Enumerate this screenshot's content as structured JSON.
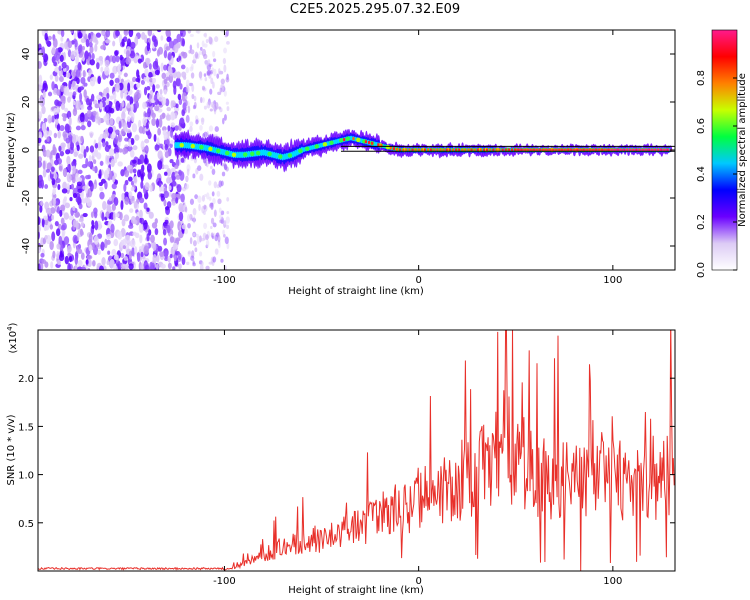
{
  "title": "C2E5.2025.295.07.32.E09",
  "colors": {
    "snr_line": "#e8302a",
    "background": "#ffffff",
    "colormap": [
      "#ffffff",
      "#dccbf5",
      "#6a00ff",
      "#0000ff",
      "#00c8ff",
      "#00ff40",
      "#c8ff00",
      "#ff8000",
      "#ff0000",
      "#ff1a8c"
    ]
  },
  "chart_data": [
    {
      "type": "heatmap",
      "name": "spectrogram",
      "xlabel": "Height of straight line (km)",
      "ylabel": "Frequency (Hz)",
      "xlim": [
        -196,
        132
      ],
      "ylim": [
        -50,
        50
      ],
      "xticks": [
        -100,
        0,
        100
      ],
      "xtick_labels": [
        "-100",
        "0",
        "100"
      ],
      "yticks": [
        -40,
        -20,
        0,
        20,
        40
      ],
      "ytick_labels": [
        "-40",
        "-20",
        "0",
        "20",
        "40"
      ],
      "colorbar": {
        "label": "Normalized spectral amplitude",
        "range": [
          0.0,
          1.0
        ],
        "ticks": [
          0.0,
          0.2,
          0.4,
          0.6,
          0.8
        ],
        "tick_labels": [
          "0.0",
          "0.2",
          "0.4",
          "0.6",
          "0.8"
        ]
      },
      "ridge_x": [
        -120,
        -110,
        -100,
        -95,
        -90,
        -80,
        -70,
        -65,
        -60,
        -50,
        -40,
        -35,
        -30,
        -20,
        -10,
        0,
        20,
        40,
        60,
        80,
        100,
        130
      ],
      "ridge_y": [
        2,
        1,
        -1,
        -2,
        -2,
        -1,
        -3,
        -2,
        0,
        2,
        4,
        5,
        4,
        2,
        0,
        0,
        0,
        0,
        0,
        0,
        0,
        0
      ],
      "reference_lines_hz": [
        1.5,
        -0.5
      ]
    },
    {
      "type": "line",
      "name": "snr",
      "xlabel": "Height of straight line (km)",
      "ylabel": "SNR (10 * v/v)",
      "exponent_label": "(x10",
      "exponent_power": "4",
      "exponent_close": ")",
      "xlim": [
        -196,
        132
      ],
      "ylim": [
        0,
        25000
      ],
      "xticks": [
        -100,
        0,
        100
      ],
      "xtick_labels": [
        "-100",
        "0",
        "100"
      ],
      "yticks": [
        5000,
        10000,
        15000,
        20000
      ],
      "ytick_labels": [
        "0.5",
        "1.0",
        "1.5",
        "2.0"
      ],
      "series": [
        {
          "name": "SNR",
          "x": [
            -196,
            -150,
            -120,
            -100,
            -90,
            -80,
            -70,
            -60,
            -50,
            -40,
            -30,
            -20,
            -10,
            0,
            10,
            20,
            30,
            40,
            45,
            50,
            60,
            70,
            80,
            90,
            100,
            110,
            120,
            130
          ],
          "y": [
            0,
            0,
            0,
            100,
            800,
            2000,
            3000,
            3600,
            4200,
            5000,
            5600,
            6800,
            7800,
            9000,
            9600,
            11000,
            12600,
            14000,
            16500,
            13000,
            12200,
            11500,
            11400,
            11000,
            11700,
            10800,
            10600,
            12300
          ]
        }
      ]
    }
  ]
}
